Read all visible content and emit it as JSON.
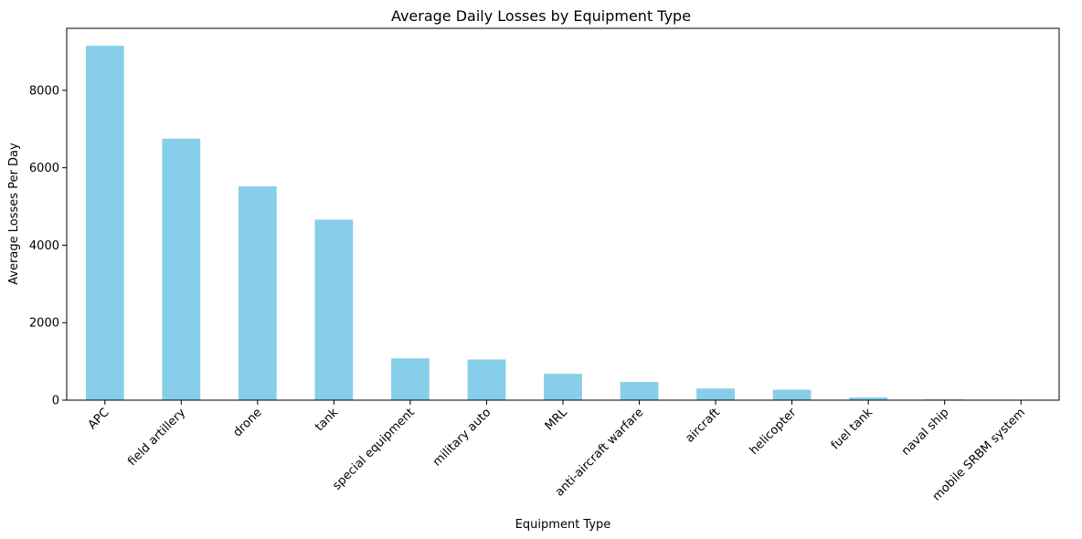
{
  "chart_data": {
    "type": "bar",
    "title": "Average Daily Losses by Equipment Type",
    "xlabel": "Equipment Type",
    "ylabel": "Average Losses Per Day",
    "categories": [
      "APC",
      "field artillery",
      "drone",
      "tank",
      "special equipment",
      "military auto",
      "MRL",
      "anti-aircraft warfare",
      "aircraft",
      "helicopter",
      "fuel tank",
      "naval ship",
      "mobile SRBM system"
    ],
    "values": [
      9150,
      6750,
      5520,
      4660,
      1080,
      1050,
      680,
      470,
      300,
      270,
      70,
      20,
      2
    ],
    "ylim": [
      0,
      9600
    ],
    "yticks": [
      0,
      2000,
      4000,
      6000,
      8000
    ],
    "bar_color": "#87ceeb",
    "grid": false,
    "legend": "none"
  }
}
